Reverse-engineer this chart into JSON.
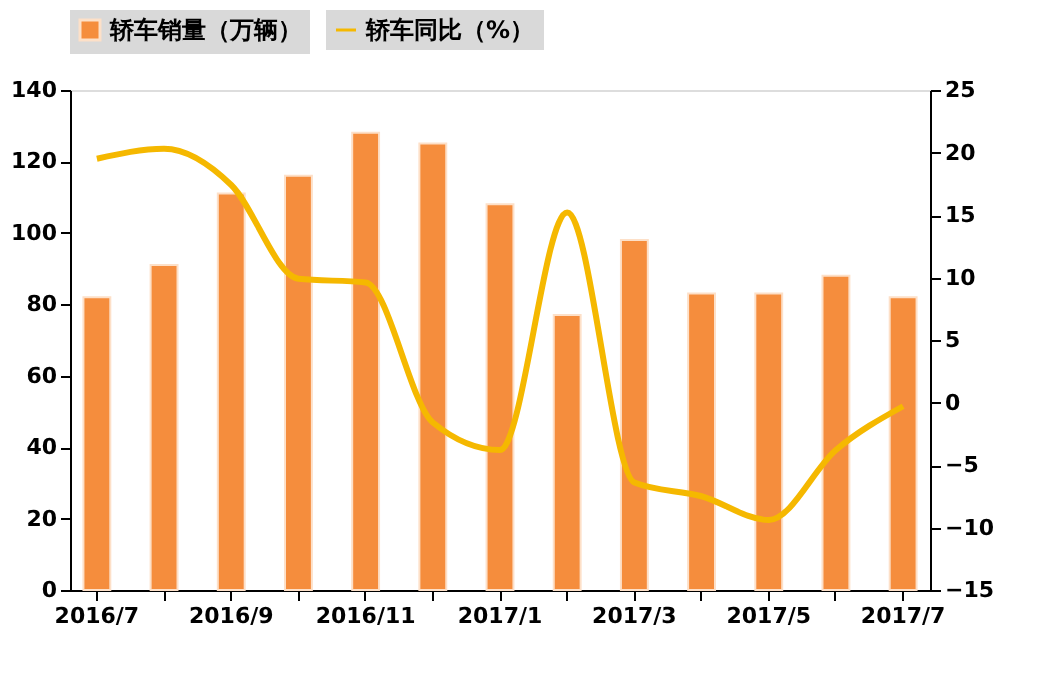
{
  "chart_data": {
    "type": "bar",
    "categories": [
      "2016/7",
      null,
      "2016/9",
      null,
      "2016/11",
      null,
      "2017/1",
      null,
      "2017/3",
      null,
      "2017/5",
      null,
      "2017/7"
    ],
    "series": [
      {
        "name": "轿车销量（万辆）",
        "color": "#f58d3d",
        "values": [
          82,
          91,
          111,
          116,
          128,
          125,
          108,
          77,
          98,
          83,
          83,
          88,
          82
        ]
      },
      {
        "name": "轿车同比（%）",
        "type": "line",
        "axis": "y2",
        "color": "#f5b800",
        "values": [
          19.5,
          20.3,
          17.4,
          9.9,
          9.6,
          -1.6,
          -3.8,
          15.2,
          -6.4,
          -7.5,
          -9.4,
          -3.8,
          -0.3
        ]
      }
    ],
    "ylim": [
      0,
      140
    ],
    "yticks": [
      0,
      20,
      40,
      60,
      80,
      100,
      120,
      140
    ],
    "y2lim": [
      -15,
      25
    ],
    "y2ticks": [
      -15,
      -10,
      -5,
      0,
      5,
      10,
      15,
      20,
      25
    ],
    "grid": false,
    "legend": "top"
  }
}
